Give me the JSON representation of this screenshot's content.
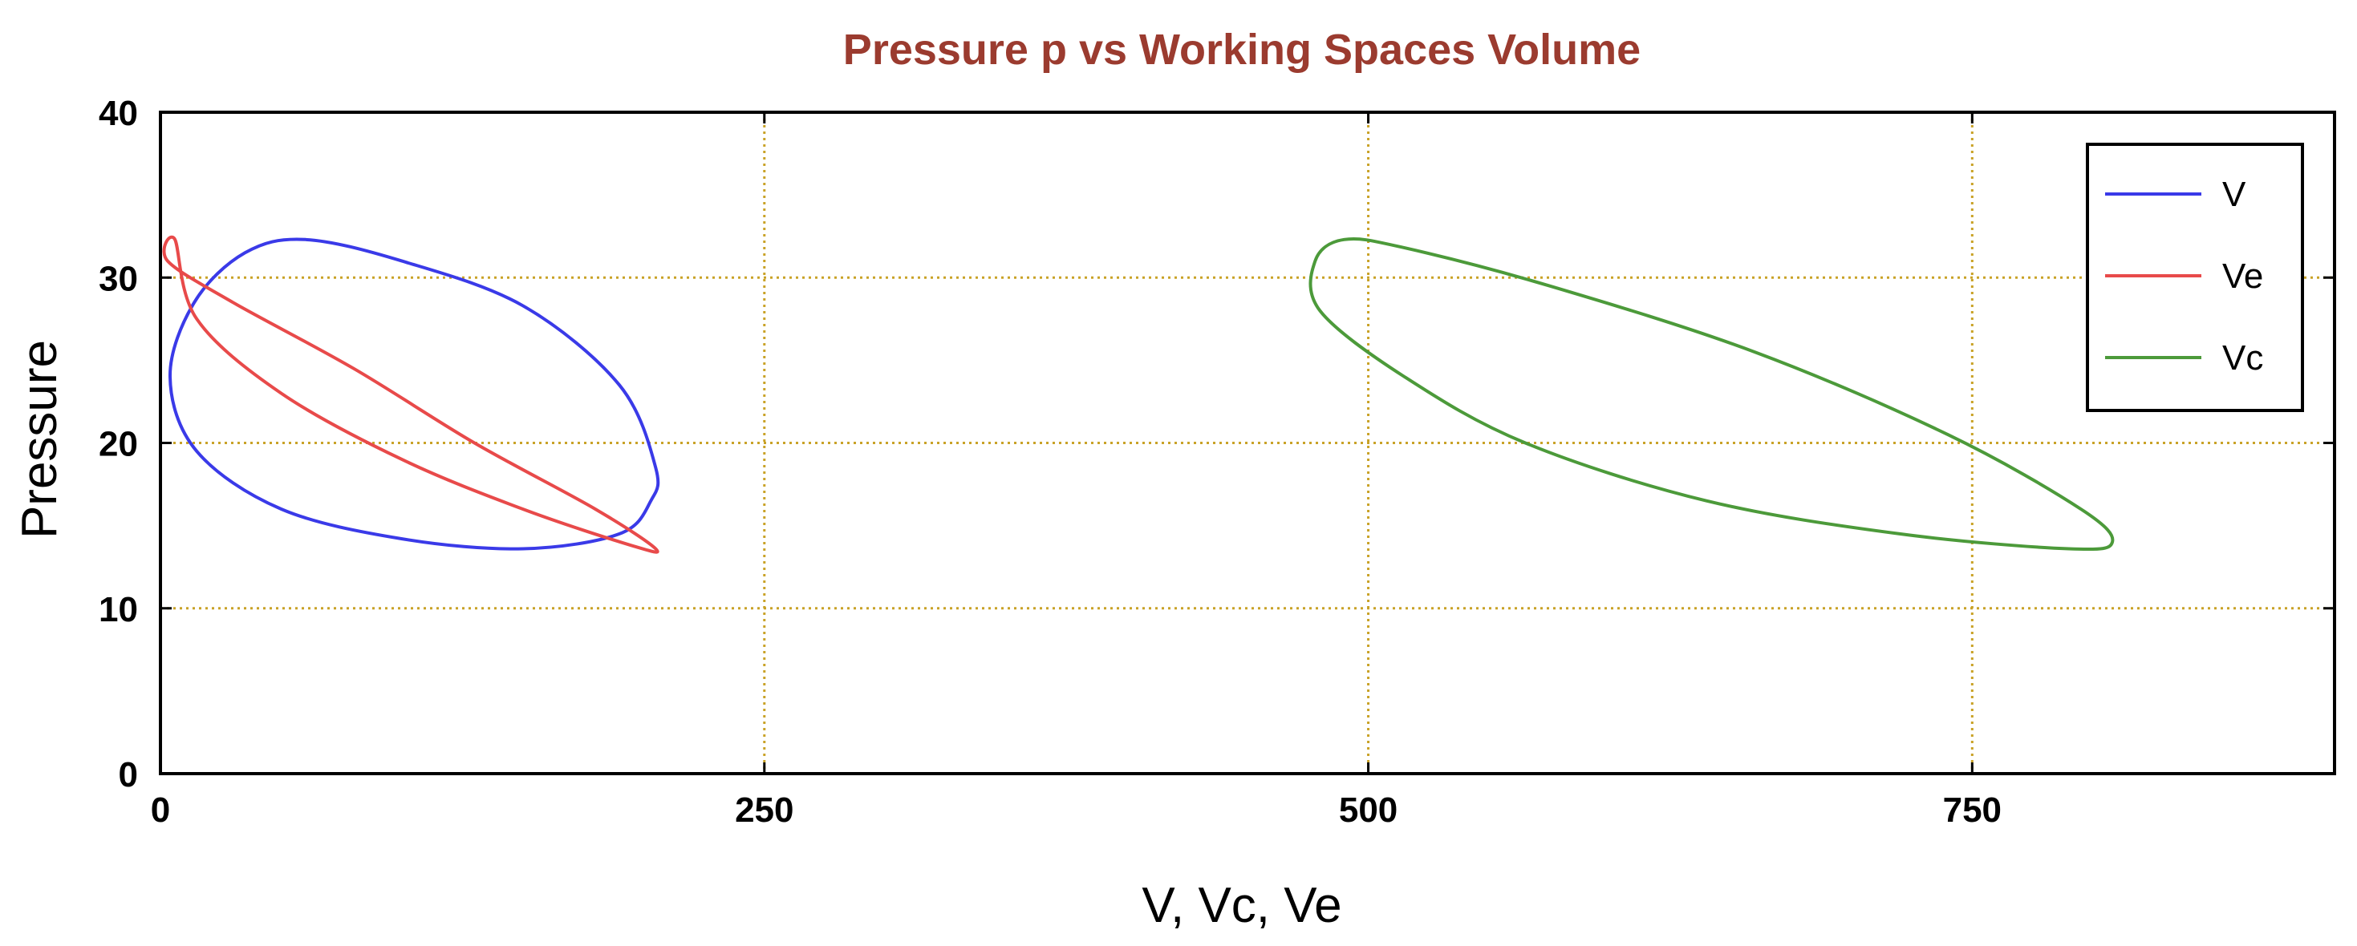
{
  "chart_data": {
    "type": "line",
    "title": "Pressure p vs Working Spaces Volume",
    "xlabel": "V, Vc, Ve",
    "ylabel": "Pressure",
    "xlim": [
      0,
      900
    ],
    "ylim": [
      0,
      40
    ],
    "xticks": [
      "0",
      "250",
      "500",
      "750"
    ],
    "xtick_values": [
      0,
      250,
      500,
      750
    ],
    "yticks": [
      "0",
      "10",
      "20",
      "30",
      "40"
    ],
    "ytick_values": [
      0,
      10,
      20,
      30,
      40
    ],
    "grid": true,
    "legend_position": "top-right",
    "colors": {
      "title": "#9b3b2f",
      "grid": "#c9a227",
      "axis": "#000000"
    },
    "series": [
      {
        "name": "V",
        "color": "#3a3ae8",
        "points": [
          [
            60,
            32.3
          ],
          [
            100,
            31.0
          ],
          [
            150,
            28.3
          ],
          [
            190,
            23.5
          ],
          [
            205,
            18.5
          ],
          [
            203,
            16.5
          ],
          [
            190,
            14.5
          ],
          [
            150,
            13.6
          ],
          [
            100,
            14.2
          ],
          [
            50,
            16.0
          ],
          [
            15,
            19.5
          ],
          [
            4,
            24.0
          ],
          [
            14,
            28.5
          ],
          [
            35,
            31.5
          ],
          [
            60,
            32.3
          ]
        ]
      },
      {
        "name": "Ve",
        "color": "#e84a4a",
        "points": [
          [
            6,
            32.3
          ],
          [
            3,
            31.0
          ],
          [
            30,
            28.5
          ],
          [
            80,
            24.5
          ],
          [
            130,
            20.0
          ],
          [
            180,
            16.0
          ],
          [
            205,
            13.6
          ],
          [
            195,
            13.8
          ],
          [
            150,
            16.0
          ],
          [
            100,
            19.0
          ],
          [
            50,
            23.0
          ],
          [
            15,
            27.5
          ],
          [
            6,
            32.3
          ]
        ]
      },
      {
        "name": "Vc",
        "color": "#4c9a3a",
        "points": [
          [
            490,
            32.3
          ],
          [
            515,
            31.8
          ],
          [
            575,
            29.5
          ],
          [
            660,
            25.5
          ],
          [
            740,
            20.5
          ],
          [
            795,
            16.0
          ],
          [
            808,
            14.0
          ],
          [
            790,
            13.6
          ],
          [
            720,
            14.5
          ],
          [
            640,
            16.5
          ],
          [
            565,
            20.0
          ],
          [
            515,
            24.0
          ],
          [
            480,
            28.0
          ],
          [
            478,
            31.0
          ],
          [
            490,
            32.3
          ]
        ]
      }
    ]
  }
}
